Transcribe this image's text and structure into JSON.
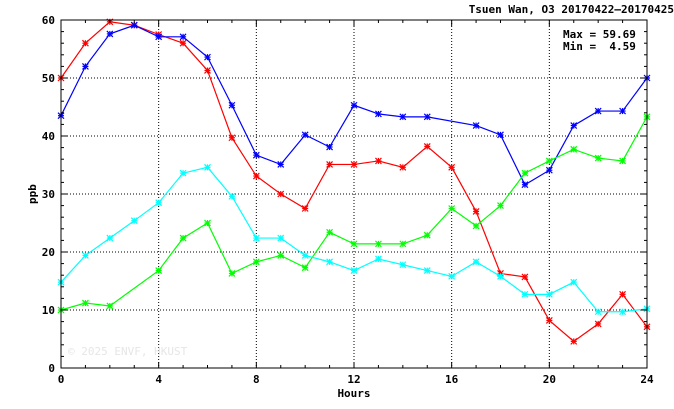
{
  "chart_data": {
    "type": "line",
    "title": "Tsuen Wan, O3 20170422–20170425",
    "xlabel": "Hours",
    "ylabel": "ppb",
    "xlim": [
      0,
      24
    ],
    "ylim": [
      0,
      60
    ],
    "xticks": [
      0,
      4,
      8,
      12,
      16,
      20,
      24
    ],
    "yticks": [
      0,
      10,
      20,
      30,
      40,
      50,
      60
    ],
    "grid": true,
    "stats": {
      "max_label": "Max = 59.69",
      "min_label": "Min =  4.59"
    },
    "watermark": "© 2025  ENVF, HKUST",
    "x": [
      0,
      1,
      2,
      3,
      4,
      5,
      6,
      7,
      8,
      9,
      10,
      11,
      12,
      13,
      14,
      15,
      16,
      17,
      18,
      19,
      20,
      21,
      22,
      23,
      24
    ],
    "series": [
      {
        "color": "#ff0000",
        "values": [
          50.0,
          56.0,
          59.69,
          59.1,
          57.5,
          56.0,
          51.3,
          39.7,
          33.1,
          30.0,
          27.5,
          35.1,
          35.1,
          35.7,
          34.6,
          38.2,
          34.6,
          27.0,
          16.3,
          15.7,
          8.2,
          4.59,
          7.6,
          12.7,
          7.1
        ]
      },
      {
        "color": "#0000ff",
        "values": [
          43.5,
          52.0,
          57.6,
          59.1,
          57.1,
          57.1,
          53.6,
          45.3,
          36.7,
          35.1,
          40.2,
          38.1,
          45.3,
          43.8,
          43.3,
          43.3,
          null,
          41.8,
          40.2,
          31.6,
          34.1,
          41.8,
          44.3,
          44.3,
          50.0
        ]
      },
      {
        "color": "#00ff00",
        "values": [
          10.0,
          11.2,
          10.7,
          null,
          16.8,
          22.4,
          25.0,
          16.3,
          18.3,
          19.4,
          17.3,
          23.4,
          21.4,
          21.4,
          21.4,
          22.9,
          27.5,
          24.5,
          28.0,
          33.6,
          35.7,
          37.7,
          36.2,
          35.7,
          43.3
        ]
      },
      {
        "color": "#00ffff",
        "values": [
          14.8,
          19.4,
          22.4,
          25.4,
          28.5,
          33.6,
          34.6,
          29.6,
          22.4,
          22.4,
          19.4,
          18.3,
          16.8,
          18.8,
          17.8,
          16.8,
          15.8,
          18.3,
          15.8,
          12.7,
          12.7,
          14.8,
          9.7,
          9.7,
          10.2
        ]
      }
    ]
  }
}
